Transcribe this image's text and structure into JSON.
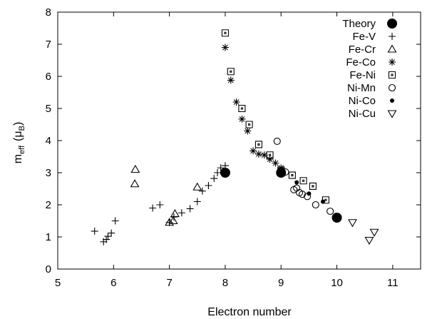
{
  "chart_data": {
    "type": "scatter",
    "xlabel": "Electron number",
    "ylabel": {
      "main": "m",
      "sub": "eff",
      "paren_open": "(μ",
      "unit_sub": "B",
      "paren_close": ")"
    },
    "xlim": [
      5,
      11.5
    ],
    "ylim": [
      0,
      8
    ],
    "x_ticks": [
      5,
      6,
      7,
      8,
      9,
      10,
      11
    ],
    "y_ticks": [
      0,
      1,
      2,
      3,
      4,
      5,
      6,
      7,
      8
    ],
    "grid": false,
    "legend_position": "top-right",
    "series": [
      {
        "name": "Theory",
        "marker": "big-dot",
        "points": [
          [
            8.0,
            3.0
          ],
          [
            9.0,
            3.0
          ],
          [
            10.0,
            1.6
          ]
        ]
      },
      {
        "name": "Fe-V",
        "marker": "plus",
        "points": [
          [
            5.66,
            1.18
          ],
          [
            5.82,
            0.85
          ],
          [
            5.87,
            0.92
          ],
          [
            5.9,
            1.02
          ],
          [
            5.96,
            1.12
          ],
          [
            6.03,
            1.5
          ],
          [
            6.7,
            1.9
          ],
          [
            6.83,
            2.0
          ],
          [
            7.0,
            1.45
          ],
          [
            7.08,
            1.62
          ],
          [
            7.22,
            1.75
          ],
          [
            7.37,
            1.88
          ],
          [
            7.5,
            2.1
          ],
          [
            7.59,
            2.43
          ],
          [
            7.7,
            2.6
          ],
          [
            7.8,
            2.82
          ],
          [
            7.86,
            3.0
          ],
          [
            7.92,
            3.15
          ],
          [
            8.0,
            3.22
          ]
        ]
      },
      {
        "name": "Fe-Cr",
        "marker": "triangle-up",
        "points": [
          [
            6.39,
            3.1
          ],
          [
            6.38,
            2.65
          ],
          [
            7.0,
            1.45
          ],
          [
            7.07,
            1.5
          ],
          [
            7.1,
            1.72
          ],
          [
            7.5,
            2.55
          ]
        ]
      },
      {
        "name": "Fe-Co",
        "marker": "asterisk",
        "points": [
          [
            8.0,
            6.9
          ],
          [
            8.1,
            5.88
          ],
          [
            8.2,
            5.2
          ],
          [
            8.3,
            4.67
          ],
          [
            8.4,
            4.3
          ],
          [
            8.5,
            3.68
          ],
          [
            8.6,
            3.58
          ],
          [
            8.7,
            3.55
          ],
          [
            8.8,
            3.42
          ],
          [
            8.9,
            3.3
          ],
          [
            9.0,
            3.15
          ]
        ]
      },
      {
        "name": "Fe-Ni",
        "marker": "square",
        "points": [
          [
            8.0,
            7.35
          ],
          [
            8.1,
            6.15
          ],
          [
            8.3,
            5.0
          ],
          [
            8.43,
            4.5
          ],
          [
            8.6,
            3.88
          ],
          [
            8.8,
            3.55
          ],
          [
            9.0,
            3.08
          ],
          [
            9.2,
            2.92
          ],
          [
            9.4,
            2.75
          ],
          [
            9.57,
            2.58
          ],
          [
            9.8,
            2.15
          ]
        ]
      },
      {
        "name": "Ni-Mn",
        "marker": "circle",
        "points": [
          [
            8.93,
            3.98
          ],
          [
            9.08,
            3.02
          ],
          [
            9.23,
            2.47
          ],
          [
            9.28,
            2.52
          ],
          [
            9.33,
            2.38
          ],
          [
            9.38,
            2.33
          ],
          [
            9.47,
            2.26
          ],
          [
            9.62,
            2.0
          ],
          [
            9.88,
            1.8
          ]
        ]
      },
      {
        "name": "Ni-Co",
        "marker": "dot",
        "points": [
          [
            9.28,
            2.7
          ],
          [
            9.5,
            2.35
          ],
          [
            9.75,
            2.1
          ]
        ]
      },
      {
        "name": "Ni-Cu",
        "marker": "triangle-down",
        "points": [
          [
            10.28,
            1.45
          ],
          [
            10.58,
            0.9
          ],
          [
            10.67,
            1.15
          ]
        ]
      }
    ]
  }
}
